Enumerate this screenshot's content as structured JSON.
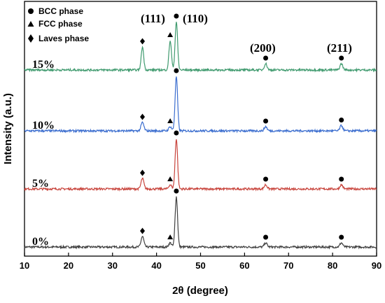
{
  "chart_data": {
    "type": "line",
    "xlabel": "2θ (degree)",
    "ylabel": "Intensity (a.u.)",
    "xlim": [
      10,
      90
    ],
    "x_ticks": [
      10,
      20,
      30,
      40,
      50,
      60,
      70,
      80,
      90
    ],
    "grid": false,
    "legend_position": "top-left",
    "legend": [
      {
        "marker": "circle",
        "label": "BCC phase"
      },
      {
        "marker": "triangle",
        "label": "FCC phase"
      },
      {
        "marker": "diamond",
        "label": "Laves phase"
      }
    ],
    "series": [
      {
        "name": "0%",
        "color": "#404040",
        "baseline": 0,
        "noise": 0.5,
        "peaks": [
          {
            "x": 36.8,
            "height": 5,
            "marker": "diamond"
          },
          {
            "x": 43.1,
            "height": 2,
            "marker": "triangle"
          },
          {
            "x": 44.5,
            "height": 24,
            "marker": "circle"
          },
          {
            "x": 64.8,
            "height": 2,
            "marker": "circle"
          },
          {
            "x": 82.0,
            "height": 2,
            "marker": "circle"
          }
        ]
      },
      {
        "name": "5%",
        "color": "#c8443c",
        "baseline": 30,
        "noise": 0.5,
        "peaks": [
          {
            "x": 36.8,
            "height": 5,
            "marker": "diamond"
          },
          {
            "x": 43.1,
            "height": 2,
            "marker": "triangle"
          },
          {
            "x": 44.5,
            "height": 24,
            "marker": "circle"
          },
          {
            "x": 64.8,
            "height": 2,
            "marker": "circle"
          },
          {
            "x": 82.0,
            "height": 2,
            "marker": "circle"
          }
        ]
      },
      {
        "name": "10%",
        "color": "#3c6ecf",
        "baseline": 60,
        "noise": 0.5,
        "peaks": [
          {
            "x": 36.8,
            "height": 4,
            "marker": "diamond"
          },
          {
            "x": 43.1,
            "height": 2,
            "marker": "triangle"
          },
          {
            "x": 44.5,
            "height": 26,
            "marker": "circle"
          },
          {
            "x": 64.8,
            "height": 2,
            "marker": "circle"
          },
          {
            "x": 82.0,
            "height": 2.5,
            "marker": "circle"
          }
        ]
      },
      {
        "name": "15%",
        "color": "#3f9a6e",
        "baseline": 90,
        "noise": 0.5,
        "peaks": [
          {
            "x": 36.8,
            "height": 11,
            "marker": "diamond"
          },
          {
            "x": 43.1,
            "height": 14,
            "marker": "triangle"
          },
          {
            "x": 44.5,
            "height": 23,
            "marker": "circle"
          },
          {
            "x": 64.8,
            "height": 3,
            "marker": "circle"
          },
          {
            "x": 82.0,
            "height": 3,
            "marker": "circle"
          }
        ]
      }
    ],
    "annotations": [
      {
        "text": "(111)",
        "x": 43.1
      },
      {
        "text": "(110)",
        "x": 44.5
      },
      {
        "text": "(200)",
        "x": 64.8
      },
      {
        "text": "(211)",
        "x": 82.0
      }
    ]
  }
}
